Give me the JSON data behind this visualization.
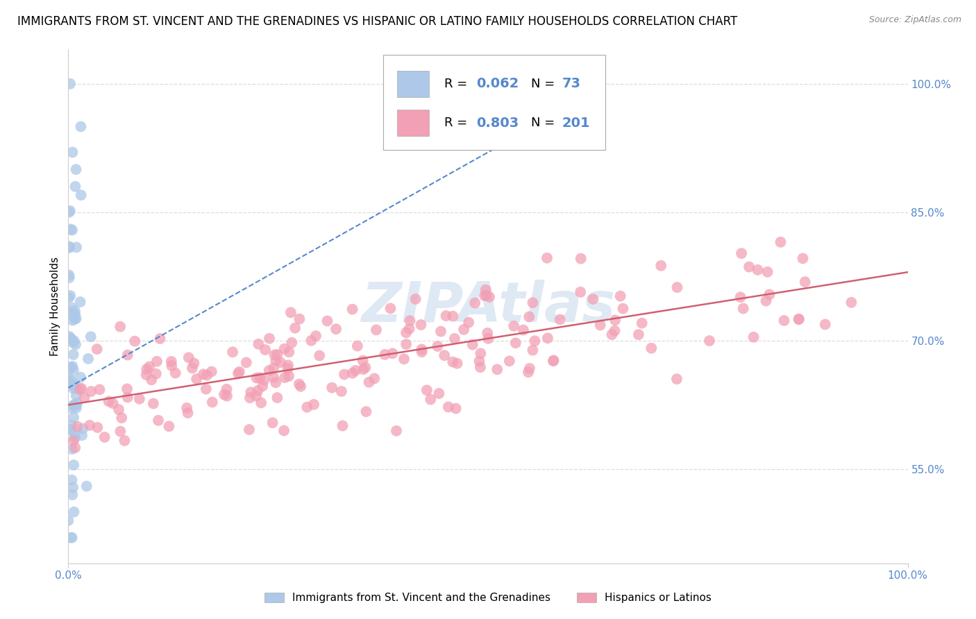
{
  "title": "IMMIGRANTS FROM ST. VINCENT AND THE GRENADINES VS HISPANIC OR LATINO FAMILY HOUSEHOLDS CORRELATION CHART",
  "source": "Source: ZipAtlas.com",
  "ylabel": "Family Households",
  "xlabel": "",
  "blue_R": 0.062,
  "blue_N": 73,
  "pink_R": 0.803,
  "pink_N": 201,
  "blue_color": "#adc8e8",
  "pink_color": "#f2a0b5",
  "blue_line_color": "#5588cc",
  "pink_line_color": "#d06070",
  "watermark": "ZIPAtlas",
  "watermark_color": "#c5d8ec",
  "xlim": [
    0.0,
    1.0
  ],
  "ylim": [
    0.44,
    1.04
  ],
  "yticks": [
    0.55,
    0.7,
    0.85,
    1.0
  ],
  "ytick_labels": [
    "55.0%",
    "70.0%",
    "85.0%",
    "100.0%"
  ],
  "xticks": [
    0.0,
    1.0
  ],
  "xtick_labels": [
    "0.0%",
    "100.0%"
  ],
  "legend_label_1": "Immigrants from St. Vincent and the Grenadines",
  "legend_label_2": "Hispanics or Latinos",
  "title_fontsize": 12,
  "axis_label_fontsize": 11,
  "tick_fontsize": 11,
  "background_color": "#ffffff",
  "grid_color": "#dddddd",
  "tick_color": "#5588cc",
  "pink_line_start_y": 0.625,
  "pink_line_end_y": 0.78,
  "blue_line_start_y": 0.645,
  "blue_line_slope": 0.55
}
